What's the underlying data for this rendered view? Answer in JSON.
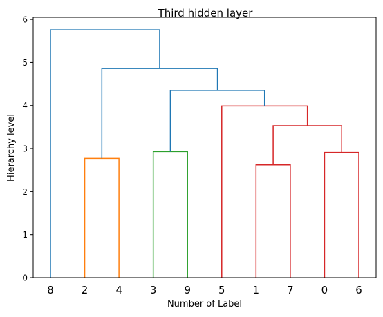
{
  "chart_data": {
    "type": "dendrogram",
    "title": "Third hidden layer",
    "xlabel": "Number of Label",
    "ylabel": "Hierarchy level",
    "ylim": [
      0,
      6.05
    ],
    "yticks": [
      0,
      1,
      2,
      3,
      4,
      5,
      6
    ],
    "leaf_order": [
      "8",
      "2",
      "4",
      "3",
      "9",
      "5",
      "1",
      "7",
      "0",
      "6"
    ],
    "grid": false,
    "colors": {
      "blue": "#1f77b4",
      "orange": "#ff7f0e",
      "green": "#2ca02c",
      "red": "#d62728"
    },
    "merges": [
      {
        "left": "2",
        "right": "4",
        "height": 2.77,
        "color": "orange"
      },
      {
        "left": "3",
        "right": "9",
        "height": 2.93,
        "color": "green"
      },
      {
        "left": "1",
        "right": "7",
        "height": 2.62,
        "color": "red"
      },
      {
        "left": "0",
        "right": "6",
        "height": 2.91,
        "color": "red"
      },
      {
        "left": "1-7",
        "right": "0-6",
        "height": 3.53,
        "color": "red"
      },
      {
        "left": "5",
        "right": "1-7-0-6",
        "height": 3.99,
        "color": "red"
      },
      {
        "left": "3-9",
        "right": "5-1-7-0-6",
        "height": 4.35,
        "color": "blue"
      },
      {
        "left": "2-4",
        "right": "3-9-5-1-7-0-6",
        "height": 4.86,
        "color": "blue"
      },
      {
        "left": "8",
        "right": "2-4-3-9-5-1-7-0-6",
        "height": 5.76,
        "color": "blue"
      }
    ]
  }
}
